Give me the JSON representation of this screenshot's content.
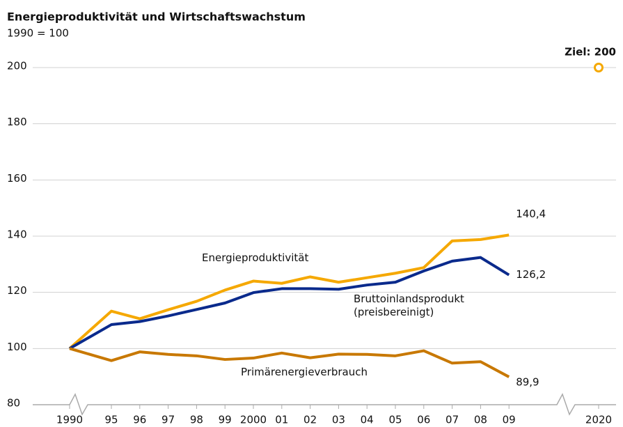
{
  "chart_data": {
    "type": "line",
    "title": "Energieproduktivität und Wirtschaftswachstum",
    "subtitle": "1990 = 100",
    "categories": [
      "1990",
      "95",
      "96",
      "97",
      "98",
      "99",
      "2000",
      "01",
      "02",
      "03",
      "04",
      "05",
      "06",
      "07",
      "08",
      "09",
      "2020"
    ],
    "series": [
      {
        "name": "Energieproduktivität",
        "color": "#f5a800",
        "end_label": "140,4",
        "values": [
          100,
          113.3,
          110.6,
          113.8,
          116.8,
          120.8,
          124.0,
          123.2,
          125.5,
          123.6,
          125.2,
          126.8,
          128.8,
          138.3,
          138.8,
          140.4,
          null
        ]
      },
      {
        "name": "Bruttoinlandsprodukt (preisbereinigt)",
        "color": "#0a2a8c",
        "end_label": "126,2",
        "values": [
          100,
          108.5,
          109.6,
          111.6,
          113.9,
          116.2,
          119.9,
          121.3,
          121.3,
          121.1,
          122.6,
          123.6,
          127.6,
          131.1,
          132.4,
          126.2,
          null
        ]
      },
      {
        "name": "Primärenergieverbrauch",
        "color": "#c87800",
        "end_label": "89,9",
        "values": [
          100,
          95.7,
          98.8,
          97.9,
          97.4,
          96.1,
          96.6,
          98.4,
          96.7,
          98.0,
          97.9,
          97.4,
          99.2,
          94.8,
          95.3,
          89.9,
          null
        ]
      }
    ],
    "target": {
      "label": "Ziel: 200",
      "value": 200,
      "color": "#f5a800"
    },
    "ylim": [
      80,
      200
    ],
    "yticks": [
      80,
      100,
      120,
      140,
      160,
      180,
      200
    ],
    "grid": true
  }
}
